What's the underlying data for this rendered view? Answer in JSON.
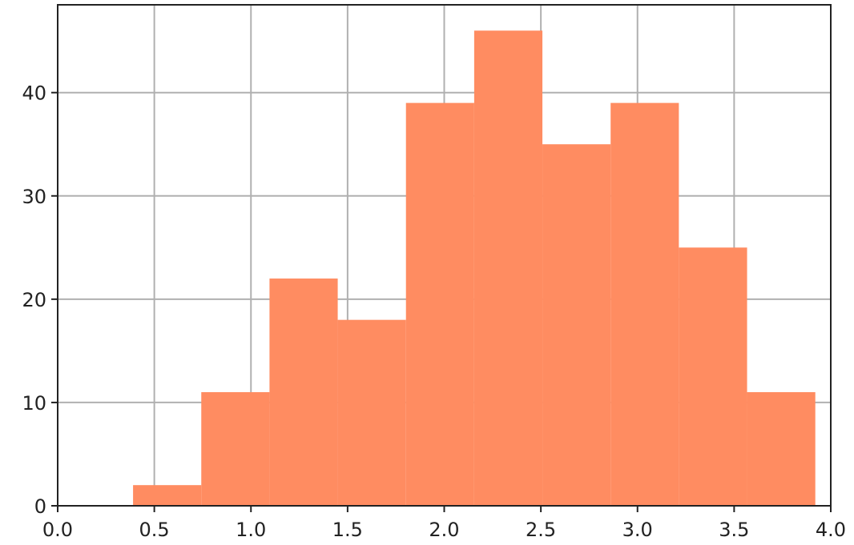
{
  "chart_data": {
    "type": "bar",
    "title": "",
    "xlabel": "",
    "ylabel": "",
    "bin_edges": [
      0.39,
      0.743,
      1.096,
      1.449,
      1.802,
      2.155,
      2.508,
      2.861,
      3.214,
      3.567,
      3.92
    ],
    "counts": [
      2,
      11,
      22,
      18,
      39,
      46,
      35,
      39,
      25,
      11
    ],
    "xlim": [
      0.0,
      4.0
    ],
    "ylim": [
      0,
      48.5
    ],
    "xticks": [
      0.0,
      0.5,
      1.0,
      1.5,
      2.0,
      2.5,
      3.0,
      3.5,
      4.0
    ],
    "xtick_labels": [
      "0.0",
      "0.5",
      "1.0",
      "1.5",
      "2.0",
      "2.5",
      "3.0",
      "3.5",
      "4.0"
    ],
    "yticks": [
      0,
      10,
      20,
      30,
      40
    ],
    "ytick_labels": [
      "0",
      "10",
      "20",
      "30",
      "40"
    ],
    "grid": true,
    "bar_color": "#ff8c61",
    "grid_color": "#b0b0b0",
    "axis_color": "#222222"
  }
}
